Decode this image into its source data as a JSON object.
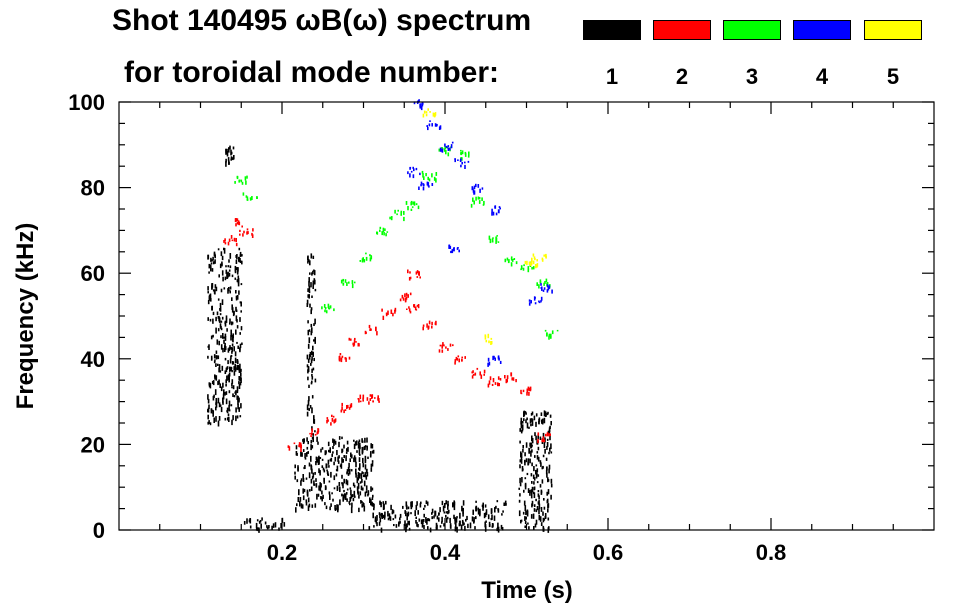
{
  "chart_data": {
    "type": "scatter",
    "title": "Shot 140495 ωB(ω) spectrum",
    "subtitle": "for toroidal mode number:",
    "xlabel": "Time (s)",
    "ylabel": "Frequency (kHz)",
    "xlim": [
      0.0,
      1.0
    ],
    "ylim": [
      0,
      100
    ],
    "x_ticks": [
      0.2,
      0.4,
      0.6,
      0.8
    ],
    "x_tick_labels": [
      "0.2",
      "0.4",
      "0.6",
      "0.8"
    ],
    "y_ticks": [
      0,
      20,
      40,
      60,
      80,
      100
    ],
    "y_tick_labels": [
      "0",
      "20",
      "40",
      "60",
      "80",
      "100"
    ],
    "grid": false,
    "legend_position": "top-right",
    "series": [
      {
        "name": "1",
        "color": "#000000",
        "clusters": [
          {
            "t0": 0.108,
            "t1": 0.15,
            "f0": 25,
            "f1": 66
          },
          {
            "t0": 0.13,
            "t1": 0.14,
            "f0": 86,
            "f1": 90
          },
          {
            "t0": 0.215,
            "t1": 0.312,
            "f0": 5,
            "f1": 22
          },
          {
            "t0": 0.23,
            "t1": 0.24,
            "f0": 22,
            "f1": 65
          },
          {
            "t0": 0.305,
            "t1": 0.475,
            "f0": 0.5,
            "f1": 7
          },
          {
            "t0": 0.49,
            "t1": 0.53,
            "f0": 0.5,
            "f1": 28
          },
          {
            "t0": 0.15,
            "t1": 0.205,
            "f0": 0.5,
            "f1": 3
          }
        ]
      },
      {
        "name": "2",
        "color": "#ff0000",
        "points": [
          [
            0.215,
            20
          ],
          [
            0.24,
            23
          ],
          [
            0.26,
            26
          ],
          [
            0.28,
            29
          ],
          [
            0.3,
            31
          ],
          [
            0.312,
            31
          ],
          [
            0.275,
            41
          ],
          [
            0.29,
            44
          ],
          [
            0.31,
            47
          ],
          [
            0.33,
            51
          ],
          [
            0.35,
            55
          ],
          [
            0.36,
            60
          ],
          [
            0.36,
            52
          ],
          [
            0.38,
            48
          ],
          [
            0.4,
            43
          ],
          [
            0.42,
            40
          ],
          [
            0.44,
            37
          ],
          [
            0.46,
            35
          ],
          [
            0.48,
            36
          ],
          [
            0.5,
            33
          ],
          [
            0.52,
            22
          ],
          [
            0.135,
            68
          ],
          [
            0.145,
            72
          ],
          [
            0.155,
            70
          ]
        ]
      },
      {
        "name": "3",
        "color": "#00ff00",
        "points": [
          [
            0.255,
            52
          ],
          [
            0.28,
            58
          ],
          [
            0.3,
            64
          ],
          [
            0.32,
            70
          ],
          [
            0.34,
            74
          ],
          [
            0.36,
            76
          ],
          [
            0.38,
            83
          ],
          [
            0.4,
            89
          ],
          [
            0.42,
            88
          ],
          [
            0.44,
            77
          ],
          [
            0.46,
            68
          ],
          [
            0.48,
            63
          ],
          [
            0.5,
            62
          ],
          [
            0.52,
            58
          ],
          [
            0.53,
            46
          ],
          [
            0.15,
            82
          ],
          [
            0.16,
            78
          ]
        ]
      },
      {
        "name": "4",
        "color": "#0000ff",
        "points": [
          [
            0.37,
            100
          ],
          [
            0.385,
            95
          ],
          [
            0.4,
            90
          ],
          [
            0.42,
            86
          ],
          [
            0.44,
            80
          ],
          [
            0.46,
            75
          ],
          [
            0.36,
            84
          ],
          [
            0.375,
            81
          ],
          [
            0.41,
            66
          ],
          [
            0.46,
            40
          ],
          [
            0.51,
            54
          ],
          [
            0.525,
            57
          ]
        ]
      },
      {
        "name": "5",
        "color": "#ffff00",
        "points": [
          [
            0.505,
            63
          ],
          [
            0.515,
            64
          ],
          [
            0.38,
            98
          ],
          [
            0.45,
            45
          ]
        ]
      }
    ]
  }
}
